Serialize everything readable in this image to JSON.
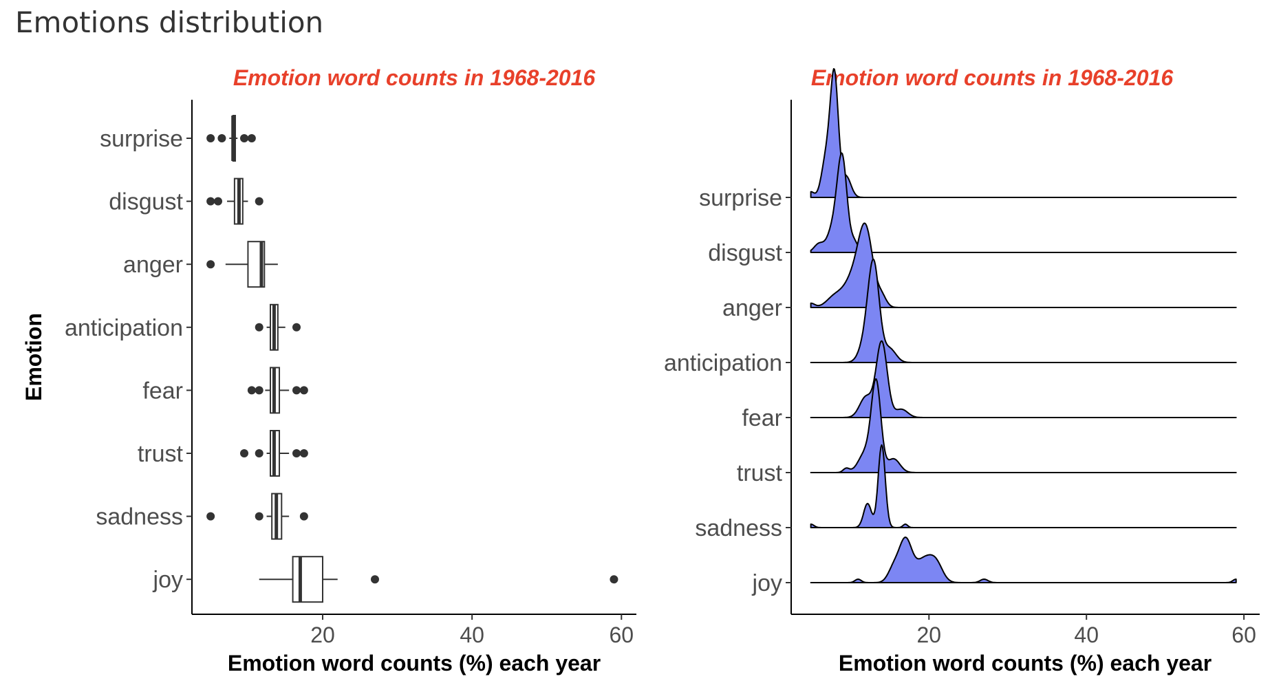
{
  "page_title": "Emotions distribution",
  "colors": {
    "title_accent": "#e8402a",
    "ridge_fill": "#7c86f3",
    "ink": "#333333"
  },
  "chart_data": [
    {
      "type": "boxplot",
      "title": "Emotion word counts in 1968-2016",
      "xlabel": "Emotion word counts (%) each year",
      "ylabel": "Emotion",
      "xlim": [
        2.5,
        62
      ],
      "xticks": [
        20,
        40,
        60
      ],
      "categories": [
        "surprise",
        "disgust",
        "anger",
        "anticipation",
        "fear",
        "trust",
        "sadness",
        "joy"
      ],
      "boxes": [
        {
          "category": "surprise",
          "whisker_low": 7.5,
          "q1": 8.0,
          "median": 8.0,
          "q3": 8.3,
          "whisker_high": 8.6,
          "outliers": [
            5,
            6.5,
            9.5,
            10.5
          ]
        },
        {
          "category": "disgust",
          "whisker_low": 7.2,
          "q1": 8.2,
          "median": 8.8,
          "q3": 9.3,
          "whisker_high": 10.0,
          "outliers": [
            5,
            6,
            11.5
          ]
        },
        {
          "category": "anger",
          "whisker_low": 7.0,
          "q1": 10.0,
          "median": 11.8,
          "q3": 12.2,
          "whisker_high": 14.0,
          "outliers": [
            5
          ]
        },
        {
          "category": "anticipation",
          "whisker_low": 12.5,
          "q1": 13.0,
          "median": 13.5,
          "q3": 14.0,
          "whisker_high": 15.0,
          "outliers": [
            11.5,
            16.5
          ]
        },
        {
          "category": "fear",
          "whisker_low": 12.3,
          "q1": 13.0,
          "median": 13.5,
          "q3": 14.2,
          "whisker_high": 15.5,
          "outliers": [
            10.5,
            11.5,
            16.5,
            17.5
          ]
        },
        {
          "category": "trust",
          "whisker_low": 12.5,
          "q1": 13.0,
          "median": 13.5,
          "q3": 14.2,
          "whisker_high": 15.5,
          "outliers": [
            9.5,
            11.5,
            16.5,
            17.5
          ]
        },
        {
          "category": "sadness",
          "whisker_low": 12.5,
          "q1": 13.2,
          "median": 13.8,
          "q3": 14.5,
          "whisker_high": 15.5,
          "outliers": [
            5,
            11.5,
            17.5
          ]
        },
        {
          "category": "joy",
          "whisker_low": 11.5,
          "q1": 16.0,
          "median": 17.0,
          "q3": 20.0,
          "whisker_high": 22.0,
          "outliers": [
            27,
            59
          ]
        }
      ]
    },
    {
      "type": "ridgeline",
      "title": "Emotion word counts in 1968-2016",
      "xlabel": "Emotion word counts (%) each year",
      "xlim": [
        2.5,
        62
      ],
      "xticks": [
        20,
        40,
        60
      ],
      "baseline_range": [
        5,
        59
      ],
      "categories": [
        "surprise",
        "disgust",
        "anger",
        "anticipation",
        "fear",
        "trust",
        "sadness",
        "joy"
      ],
      "densities": [
        {
          "category": "surprise",
          "peaks": [
            [
              8,
              1.7,
              0.5
            ],
            [
              7,
              0.6,
              0.6
            ],
            [
              9.5,
              0.3,
              0.6
            ],
            [
              5,
              0.08,
              0.4
            ]
          ]
        },
        {
          "category": "disgust",
          "peaks": [
            [
              9,
              1.25,
              0.6
            ],
            [
              8,
              0.4,
              0.8
            ],
            [
              6,
              0.12,
              0.6
            ],
            [
              10.5,
              0.15,
              0.5
            ]
          ]
        },
        {
          "category": "anger",
          "peaks": [
            [
              12,
              1.0,
              0.9
            ],
            [
              10.5,
              0.45,
              1.2
            ],
            [
              8,
              0.15,
              1.0
            ],
            [
              5,
              0.06,
              0.5
            ],
            [
              14,
              0.15,
              0.6
            ]
          ]
        },
        {
          "category": "anticipation",
          "peaks": [
            [
              13,
              1.35,
              0.7
            ],
            [
              12,
              0.3,
              0.8
            ],
            [
              15,
              0.2,
              0.8
            ]
          ]
        },
        {
          "category": "fear",
          "peaks": [
            [
              14,
              1.1,
              0.7
            ],
            [
              12,
              0.3,
              0.8
            ],
            [
              16.5,
              0.12,
              0.8
            ]
          ]
        },
        {
          "category": "trust",
          "peaks": [
            [
              13.3,
              1.25,
              0.6
            ],
            [
              12,
              0.3,
              0.9
            ],
            [
              15.5,
              0.2,
              0.8
            ],
            [
              9.5,
              0.06,
              0.4
            ]
          ]
        },
        {
          "category": "sadness",
          "peaks": [
            [
              14,
              1.2,
              0.45
            ],
            [
              12.2,
              0.35,
              0.5
            ],
            [
              17,
              0.05,
              0.3
            ],
            [
              5,
              0.05,
              0.4
            ]
          ]
        },
        {
          "category": "joy",
          "peaks": [
            [
              17,
              0.6,
              0.8
            ],
            [
              19.5,
              0.35,
              1.2
            ],
            [
              21,
              0.18,
              0.8
            ],
            [
              15.5,
              0.2,
              0.7
            ],
            [
              11,
              0.05,
              0.4
            ],
            [
              27,
              0.05,
              0.5
            ],
            [
              59,
              0.05,
              0.4
            ]
          ]
        }
      ]
    }
  ]
}
